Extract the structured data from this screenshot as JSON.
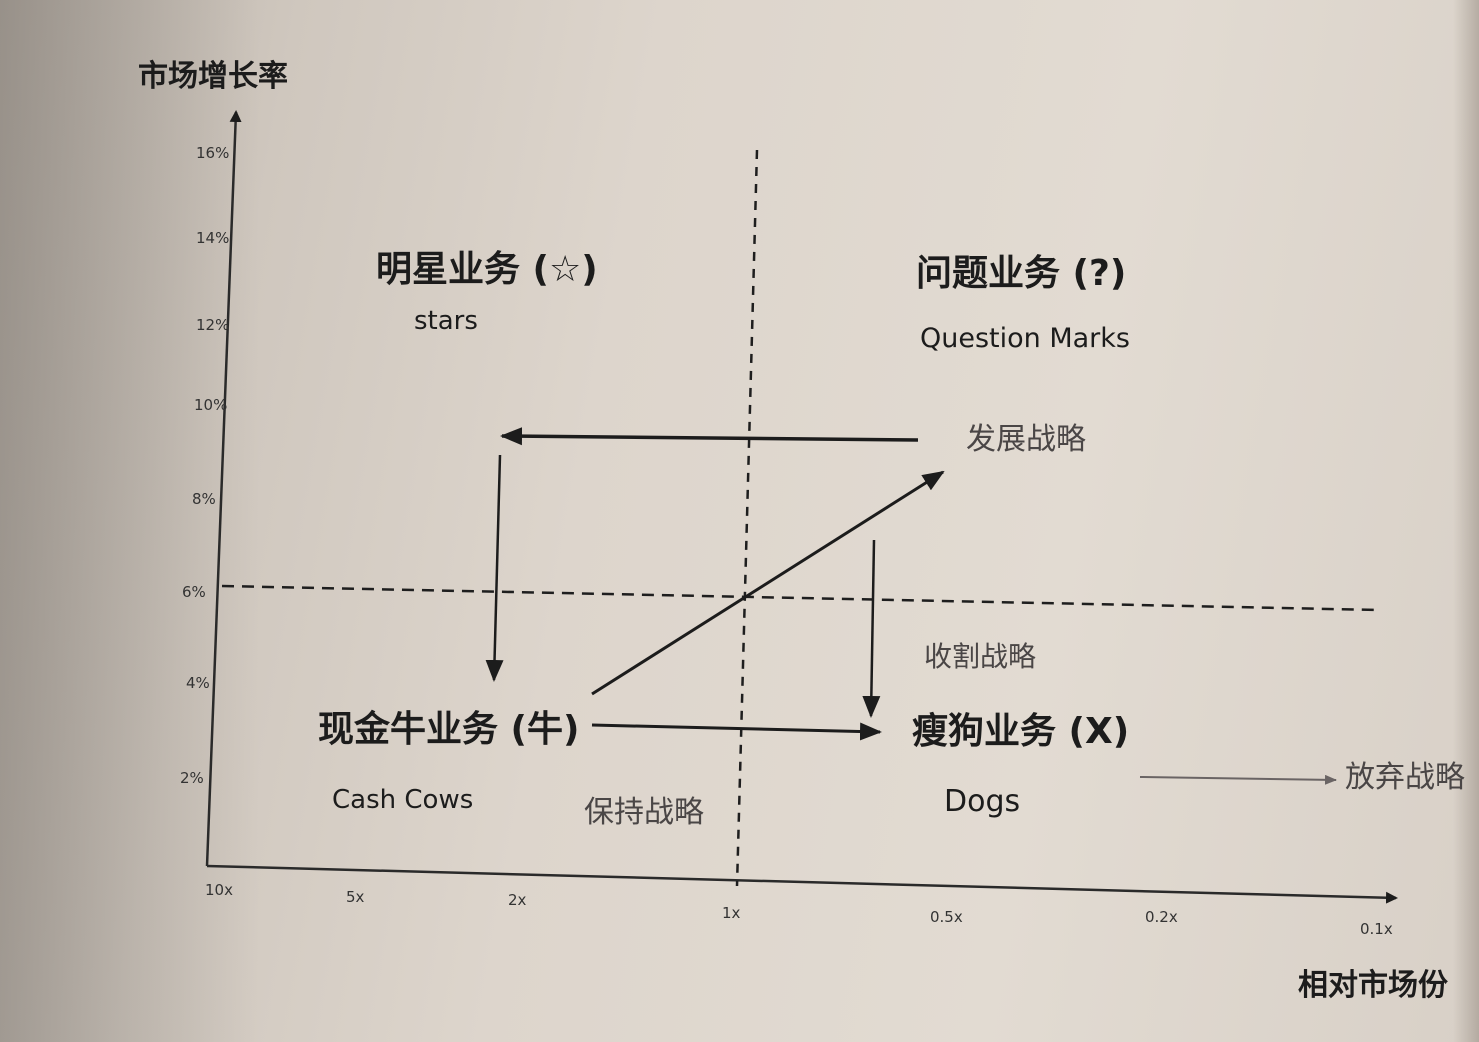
{
  "axes": {
    "y_label": "市场增长率",
    "x_label": "相对市场份",
    "y_ticks": [
      "16%",
      "14%",
      "12%",
      "10%",
      "8%",
      "6%",
      "4%",
      "2%"
    ],
    "x_ticks": [
      "10x",
      "5x",
      "2x",
      "1x",
      "0.5x",
      "0.2x",
      "0.1x"
    ]
  },
  "quadrants": {
    "stars": {
      "cn": "明星业务 (☆)",
      "en": "stars"
    },
    "question_marks": {
      "cn": "问题业务 (?)",
      "en": "Question Marks"
    },
    "cash_cows": {
      "cn": "现金牛业务 (牛)",
      "en": "Cash Cows"
    },
    "dogs": {
      "cn": "瘦狗业务 (X)",
      "en": "Dogs"
    }
  },
  "strategies": {
    "develop": "发展战略",
    "harvest": "收割战略",
    "hold": "保持战略",
    "abandon": "放弃战略"
  },
  "colors": {
    "ink": "#1c1c1c",
    "pencil": "#4a4646",
    "paper": "#e2dbd2"
  }
}
